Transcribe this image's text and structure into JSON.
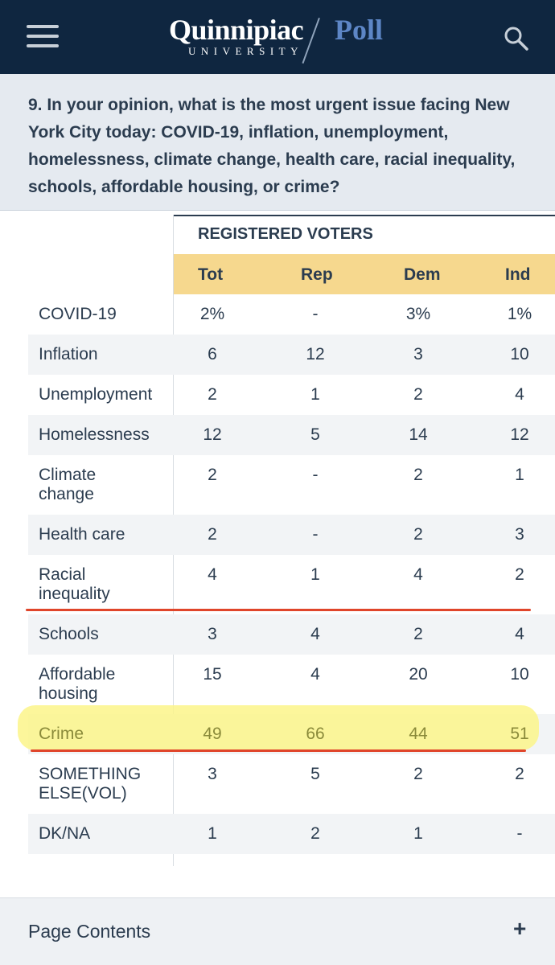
{
  "header": {
    "logo_main": "Quinnipiac",
    "logo_poll": "Poll",
    "logo_sub": "UNIVERSITY",
    "menu_icon": "hamburger-menu-icon",
    "search_icon": "search-icon",
    "background_color": "#0f2640"
  },
  "question": {
    "text": "9. In your opinion, what is the most urgent issue facing New York City today: COVID-19, inflation, unemployment, homelessness, climate change, health care, racial inequality, schools, affordable housing, or crime?"
  },
  "table": {
    "group_label": "REGISTERED VOTERS",
    "columns": [
      "Tot",
      "Rep",
      "Dem",
      "Ind"
    ],
    "header_color": "#f6d88e",
    "rows": [
      {
        "label": "COVID-19",
        "values": [
          "2%",
          "-",
          "3%",
          "1%"
        ]
      },
      {
        "label": "Inflation",
        "values": [
          "6",
          "12",
          "3",
          "10"
        ]
      },
      {
        "label": "Unemployment",
        "values": [
          "2",
          "1",
          "2",
          "4"
        ]
      },
      {
        "label": "Homelessness",
        "values": [
          "12",
          "5",
          "14",
          "12"
        ]
      },
      {
        "label": "Climate change",
        "values": [
          "2",
          "-",
          "2",
          "1"
        ]
      },
      {
        "label": "Health care",
        "values": [
          "2",
          "-",
          "2",
          "3"
        ]
      },
      {
        "label": "Racial inequality",
        "values": [
          "4",
          "1",
          "4",
          "2"
        ]
      },
      {
        "label": "Schools",
        "values": [
          "3",
          "4",
          "2",
          "4"
        ]
      },
      {
        "label": "Affordable housing",
        "values": [
          "15",
          "4",
          "20",
          "10"
        ]
      },
      {
        "label": "Crime",
        "values": [
          "49",
          "66",
          "44",
          "51"
        ]
      },
      {
        "label": "SOMETHING ELSE(VOL)",
        "values": [
          "3",
          "5",
          "2",
          "2"
        ]
      },
      {
        "label": "DK/NA",
        "values": [
          "1",
          "2",
          "1",
          "-"
        ]
      }
    ],
    "highlight_color": "#fbf58a",
    "annotation_line_color": "#e0452a"
  },
  "footer": {
    "label": "Page Contents",
    "expand_symbol": "+"
  }
}
